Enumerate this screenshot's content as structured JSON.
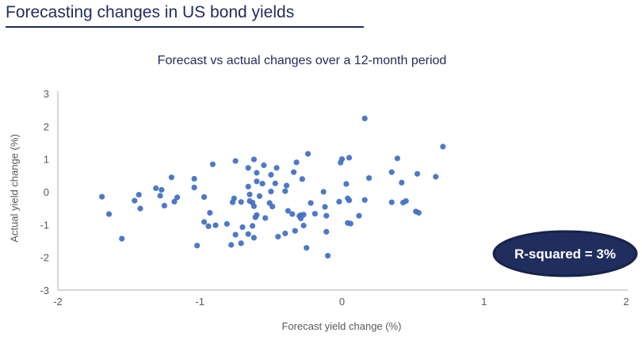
{
  "page": {
    "title": "Forecasting changes in US bond yields"
  },
  "colors": {
    "heading": "#1F2B5C",
    "axis_line": "#BFBFBF",
    "axis_text": "#595959"
  },
  "chart_data": {
    "type": "scatter",
    "title": "Forecast vs actual changes over a 12-month period",
    "xlabel": "Forecast yield change (%)",
    "ylabel": "Actual yield change (%)",
    "xlim": [
      -2,
      2
    ],
    "ylim": [
      -3,
      3
    ],
    "xticks": [
      -2,
      -1,
      0,
      1,
      2
    ],
    "yticks": [
      3,
      2,
      1,
      0,
      -1,
      -2,
      -3
    ],
    "grid": false,
    "legend": "none",
    "marker_color": "#4472C4",
    "annotation": {
      "text": "R-squared = 3%",
      "fill": "#1F2E5E",
      "border": "#18234A",
      "text_color": "#FFFFFF"
    },
    "points": [
      [
        -1.69,
        -0.15
      ],
      [
        -1.64,
        -0.68
      ],
      [
        -1.55,
        -1.43
      ],
      [
        -1.46,
        -0.27
      ],
      [
        -1.43,
        -0.09
      ],
      [
        -1.42,
        -0.51
      ],
      [
        -1.31,
        0.11
      ],
      [
        -1.27,
        0.06
      ],
      [
        -1.28,
        -0.12
      ],
      [
        -1.25,
        -0.42
      ],
      [
        -1.2,
        0.44
      ],
      [
        -1.18,
        -0.3
      ],
      [
        -1.16,
        -0.17
      ],
      [
        -1.04,
        0.4
      ],
      [
        -1.04,
        0.13
      ],
      [
        -1.02,
        -1.64
      ],
      [
        -0.97,
        -0.16
      ],
      [
        -0.97,
        -0.92
      ],
      [
        -0.94,
        -1.05
      ],
      [
        -0.93,
        -0.64
      ],
      [
        -0.91,
        0.84
      ],
      [
        -0.89,
        -1.02
      ],
      [
        -0.81,
        -0.98
      ],
      [
        -0.78,
        -1.62
      ],
      [
        -0.77,
        -0.32
      ],
      [
        -0.76,
        -0.2
      ],
      [
        -0.75,
        0.94
      ],
      [
        -0.75,
        -1.31
      ],
      [
        -0.71,
        -0.31
      ],
      [
        -0.71,
        -1.57
      ],
      [
        -0.7,
        -1.08
      ],
      [
        -0.66,
        0.73
      ],
      [
        -0.66,
        0.16
      ],
      [
        -0.66,
        -1.29
      ],
      [
        -0.65,
        -0.08
      ],
      [
        -0.65,
        -0.28
      ],
      [
        -0.63,
        -0.33
      ],
      [
        -0.63,
        -1.04
      ],
      [
        -0.62,
        0.99
      ],
      [
        -0.62,
        -0.44
      ],
      [
        -0.62,
        -1.4
      ],
      [
        -0.61,
        -0.78
      ],
      [
        -0.6,
        0.58
      ],
      [
        -0.6,
        0.32
      ],
      [
        -0.6,
        -0.71
      ],
      [
        -0.58,
        -0.13
      ],
      [
        -0.56,
        0.25
      ],
      [
        -0.55,
        0.81
      ],
      [
        -0.54,
        -0.8
      ],
      [
        -0.51,
        -0.34
      ],
      [
        -0.5,
        0.52
      ],
      [
        -0.5,
        0.01
      ],
      [
        -0.49,
        -0.45
      ],
      [
        -0.47,
        0.26
      ],
      [
        -0.46,
        0.73
      ],
      [
        -0.45,
        -1.37
      ],
      [
        -0.4,
        0.02
      ],
      [
        -0.4,
        -1.27
      ],
      [
        -0.39,
        0.19
      ],
      [
        -0.38,
        -0.58
      ],
      [
        -0.35,
        -0.68
      ],
      [
        -0.34,
        0.6
      ],
      [
        -0.33,
        -1.19
      ],
      [
        -0.32,
        0.9
      ],
      [
        -0.3,
        -0.74
      ],
      [
        -0.29,
        -0.71
      ],
      [
        -0.29,
        -0.81
      ],
      [
        -0.28,
        0.39
      ],
      [
        -0.27,
        -0.7
      ],
      [
        -0.27,
        -1.03
      ],
      [
        -0.25,
        -1.71
      ],
      [
        -0.24,
        1.16
      ],
      [
        -0.22,
        -0.34
      ],
      [
        -0.19,
        -0.67
      ],
      [
        -0.13,
        0.0
      ],
      [
        -0.12,
        -0.46
      ],
      [
        -0.11,
        -0.73
      ],
      [
        -0.11,
        -1.22
      ],
      [
        -0.1,
        -1.95
      ],
      [
        -0.01,
        0.89
      ],
      [
        0.0,
        1.0
      ],
      [
        0.05,
        1.04
      ],
      [
        0.16,
        2.24
      ],
      [
        0.03,
        0.24
      ],
      [
        -0.02,
        -0.3
      ],
      [
        0.04,
        -0.2
      ],
      [
        0.05,
        -0.26
      ],
      [
        0.16,
        -0.25
      ],
      [
        0.12,
        -0.73
      ],
      [
        0.04,
        -0.95
      ],
      [
        0.06,
        -0.97
      ],
      [
        0.19,
        0.42
      ],
      [
        0.35,
        0.6
      ],
      [
        0.39,
        1.02
      ],
      [
        0.42,
        0.28
      ],
      [
        0.35,
        -0.32
      ],
      [
        0.43,
        -0.33
      ],
      [
        0.45,
        -0.28
      ],
      [
        0.52,
        -0.6
      ],
      [
        0.54,
        -0.64
      ],
      [
        0.53,
        0.55
      ],
      [
        0.66,
        0.46
      ],
      [
        0.71,
        1.38
      ]
    ]
  }
}
